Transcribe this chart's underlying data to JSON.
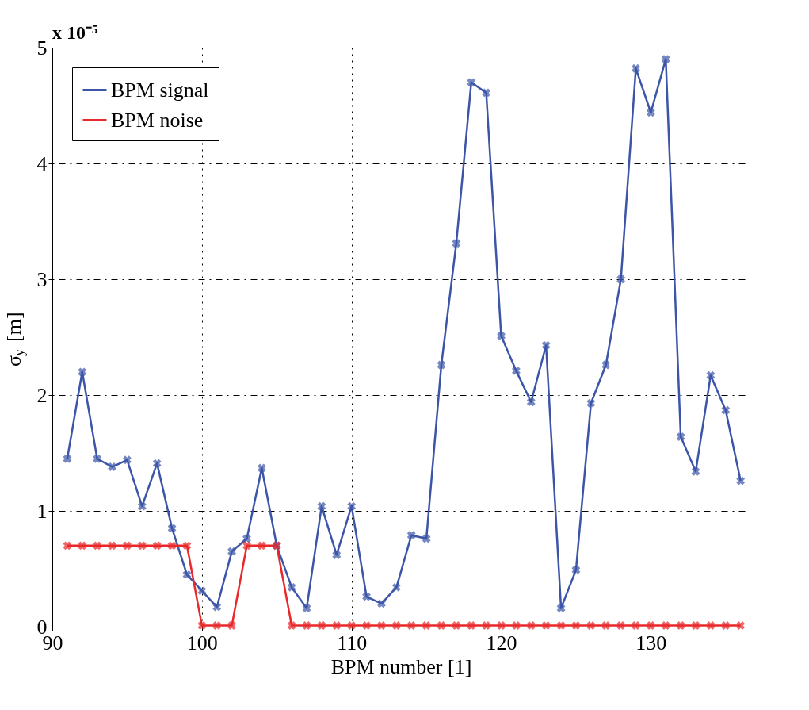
{
  "chart_data": {
    "type": "line",
    "xlabel": "BPM number [1]",
    "ylabel": "σ$_{y}$ [m]",
    "annotations": [
      "x 10⁻⁵"
    ],
    "x": [
      91,
      92,
      93,
      94,
      95,
      96,
      97,
      98,
      99,
      100,
      101,
      102,
      103,
      104,
      105,
      106,
      107,
      108,
      109,
      110,
      111,
      112,
      113,
      114,
      115,
      116,
      117,
      118,
      119,
      120,
      121,
      122,
      123,
      124,
      125,
      126,
      127,
      128,
      129,
      130,
      131,
      132,
      133,
      134,
      135,
      136
    ],
    "series": [
      {
        "name": "BPM signal",
        "color": "#3c55a8",
        "values": [
          1.45,
          2.2,
          1.45,
          1.38,
          1.44,
          1.04,
          1.41,
          0.85,
          0.45,
          0.31,
          0.17,
          0.65,
          0.76,
          1.37,
          0.7,
          0.34,
          0.16,
          1.04,
          0.62,
          1.04,
          0.26,
          0.2,
          0.34,
          0.79,
          0.76,
          2.26,
          3.31,
          4.7,
          4.61,
          2.51,
          2.21,
          1.94,
          2.43,
          0.16,
          0.49,
          1.93,
          2.26,
          3.0,
          4.82,
          4.44,
          4.9,
          1.64,
          1.34,
          2.17,
          1.87,
          1.26
        ]
      },
      {
        "name": "BPM noise",
        "color": "#e8282a",
        "values": [
          0.7,
          0.7,
          0.7,
          0.7,
          0.7,
          0.7,
          0.7,
          0.7,
          0.7,
          0.01,
          0.01,
          0.01,
          0.7,
          0.7,
          0.7,
          0.01,
          0.01,
          0.01,
          0.01,
          0.01,
          0.01,
          0.01,
          0.01,
          0.01,
          0.01,
          0.01,
          0.01,
          0.01,
          0.01,
          0.01,
          0.01,
          0.01,
          0.01,
          0.01,
          0.01,
          0.01,
          0.01,
          0.01,
          0.01,
          0.01,
          0.01,
          0.01,
          0.01,
          0.01,
          0.01,
          0.01
        ]
      }
    ],
    "xlim": [
      90,
      136.6
    ],
    "xticks": [
      90,
      100,
      110,
      120,
      130
    ],
    "ylim": [
      0,
      5
    ],
    "yticks": [
      0,
      1,
      2,
      3,
      4,
      5
    ],
    "grid": true,
    "legend": "top left",
    "marker": "cross",
    "line_style": "solid"
  }
}
